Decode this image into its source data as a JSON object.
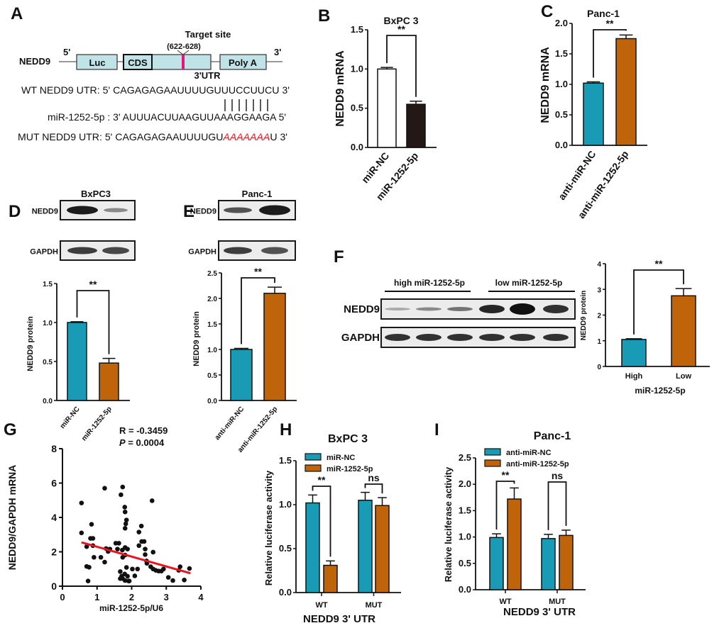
{
  "panel_letters": [
    "A",
    "B",
    "C",
    "D",
    "E",
    "F",
    "G",
    "H",
    "I"
  ],
  "panel_a": {
    "gene": "NEDD9",
    "five_prime": "5'",
    "three_prime": "3'",
    "boxes": {
      "luc": "Luc",
      "cds": "CDS",
      "poly_a": "Poly A"
    },
    "utr_label": "3'UTR",
    "target_site": "Target site",
    "target_range": "(622-628)",
    "wt_line": "WT NEDD9  UTR: 5' CAGAGAGAAUUUUGUUUCCUUCU 3'",
    "mir_line": "miR-1252-5p : 3' AUUUACUUAAGUUAAAGGAAGA 5'",
    "mut_prefix": "MUT NEDD9  UTR: 5' CAGAGAGAAUUUUGU",
    "mut_site": "AAAAAAA",
    "mut_suffix": "U 3'",
    "colors": {
      "box": "#bfe3e6",
      "target": "#e6157a",
      "mutation": "#e8141e"
    }
  },
  "blots": {
    "D": {
      "rows": [
        "NEDD9",
        "GAPDH"
      ]
    },
    "E": {
      "rows": [
        "NEDD9",
        "GAPDH"
      ]
    },
    "F": {
      "rows": [
        "NEDD9",
        "GAPDH"
      ],
      "groups": [
        "high miR-1252-5p",
        "low miR-1252-5p"
      ]
    }
  },
  "panel_g_stats": {
    "r": "R = -0.3459",
    "p_symbol": "P",
    "p_value": " = 0.0004"
  },
  "chart_data": [
    {
      "panel": "B",
      "type": "bar",
      "title": "BxPC 3",
      "ylabel": "NEDD9 mRNA",
      "xlabel": "",
      "categories": [
        "miR-NC",
        "miR-1252-5p"
      ],
      "values": [
        1.0,
        0.55
      ],
      "errors": [
        0.02,
        0.04
      ],
      "colors": [
        "#ffffff",
        "#231815"
      ],
      "ylim": [
        0,
        1.5
      ],
      "yticks": [
        "0.0",
        "0.5",
        "1.0",
        "1.5"
      ],
      "significance": [
        {
          "label": "**"
        }
      ]
    },
    {
      "panel": "C",
      "type": "bar",
      "title": "Panc-1",
      "ylabel": "NEDD9 mRNA",
      "xlabel": "",
      "categories": [
        "anti-miR-NC",
        "anti-miR-1252-5p"
      ],
      "values": [
        1.02,
        1.75
      ],
      "errors": [
        0.02,
        0.06
      ],
      "colors": [
        "#1a9bb5",
        "#c0640c"
      ],
      "ylim": [
        0,
        2.0
      ],
      "yticks": [
        "0.0",
        "0.5",
        "1.0",
        "1.5",
        "2.0"
      ],
      "significance": [
        {
          "label": "**"
        }
      ]
    },
    {
      "panel": "D",
      "type": "bar",
      "title": "BxPC3",
      "ylabel": "NEDD9 protein",
      "xlabel": "",
      "categories": [
        "miR-NC",
        "miR-1252-5p"
      ],
      "values": [
        1.0,
        0.48
      ],
      "errors": [
        0.01,
        0.06
      ],
      "colors": [
        "#1a9bb5",
        "#c0640c"
      ],
      "ylim": [
        0,
        1.5
      ],
      "yticks": [
        "0.0",
        "0.5",
        "1.0",
        "1.5"
      ],
      "significance": [
        {
          "label": "**"
        }
      ]
    },
    {
      "panel": "E",
      "type": "bar",
      "title": "Panc-1",
      "ylabel": "NEDD9 protein",
      "xlabel": "",
      "categories": [
        "anti-miR-NC",
        "anti-miR-1252-5p"
      ],
      "values": [
        1.0,
        2.1
      ],
      "errors": [
        0.02,
        0.12
      ],
      "colors": [
        "#1a9bb5",
        "#c0640c"
      ],
      "ylim": [
        0,
        2.5
      ],
      "yticks": [
        "0.0",
        "0.5",
        "1.0",
        "1.5",
        "2.0",
        "2.5"
      ],
      "significance": [
        {
          "label": "**"
        }
      ]
    },
    {
      "panel": "F",
      "type": "bar",
      "title": "",
      "ylabel": "NEDD9 protein",
      "xlabel": "miR-1252-5p",
      "categories": [
        "High",
        "Low"
      ],
      "values": [
        1.05,
        2.75
      ],
      "errors": [
        0.03,
        0.28
      ],
      "colors": [
        "#1a9bb5",
        "#c0640c"
      ],
      "ylim": [
        0,
        4
      ],
      "yticks": [
        "0",
        "1",
        "2",
        "3",
        "4"
      ],
      "significance": [
        {
          "label": "**"
        }
      ]
    },
    {
      "panel": "G",
      "type": "scatter",
      "title": "",
      "ylabel": "NEDD9/GAPDH mRNA",
      "xlabel": "miR-1252-5p/U6",
      "xlim": [
        0,
        4
      ],
      "ylim": [
        0,
        8
      ],
      "xticks": [
        "0",
        "1",
        "2",
        "3",
        "4"
      ],
      "yticks": [
        "0",
        "2",
        "4",
        "6",
        "8"
      ],
      "fit_line": {
        "x": [
          0.55,
          3.7
        ],
        "y": [
          2.55,
          0.75
        ],
        "color": "#e8141e"
      },
      "points": [
        [
          0.55,
          3.1
        ],
        [
          0.55,
          4.84
        ],
        [
          0.7,
          2.3
        ],
        [
          0.7,
          1.15
        ],
        [
          0.77,
          1.1
        ],
        [
          0.74,
          0.3
        ],
        [
          0.84,
          3.6
        ],
        [
          0.81,
          2.78
        ],
        [
          0.88,
          2.78
        ],
        [
          0.88,
          2.36
        ],
        [
          0.91,
          1.68
        ],
        [
          1.11,
          1.68
        ],
        [
          1.22,
          1.4
        ],
        [
          1.22,
          5.7
        ],
        [
          1.26,
          2.19
        ],
        [
          1.37,
          2.16
        ],
        [
          1.32,
          2.02
        ],
        [
          1.54,
          2.5
        ],
        [
          1.63,
          2.5
        ],
        [
          1.59,
          2.16
        ],
        [
          1.69,
          5.32
        ],
        [
          1.74,
          5.77
        ],
        [
          1.8,
          4.6
        ],
        [
          1.81,
          4.32
        ],
        [
          1.85,
          3.85
        ],
        [
          1.83,
          3.63
        ],
        [
          1.81,
          3.37
        ],
        [
          1.73,
          2.1
        ],
        [
          1.81,
          2.25
        ],
        [
          1.88,
          2.16
        ],
        [
          1.74,
          1.68
        ],
        [
          1.81,
          1.81
        ],
        [
          1.67,
          0.85
        ],
        [
          1.71,
          0.58
        ],
        [
          1.74,
          0.44
        ],
        [
          1.8,
          0.71
        ],
        [
          1.85,
          1.09
        ],
        [
          1.88,
          0.58
        ],
        [
          1.91,
          0.3
        ],
        [
          1.93,
          0.3
        ],
        [
          1.81,
          0.33
        ],
        [
          1.67,
          0.44
        ],
        [
          2.02,
          1.0
        ],
        [
          2.09,
          0.6
        ],
        [
          2.17,
          1.0
        ],
        [
          2.21,
          2.36
        ],
        [
          2.21,
          3.15
        ],
        [
          2.28,
          3.5
        ],
        [
          2.29,
          2.6
        ],
        [
          2.36,
          2.6
        ],
        [
          2.39,
          2.16
        ],
        [
          2.39,
          1.84
        ],
        [
          2.43,
          1.47
        ],
        [
          2.44,
          1.33
        ],
        [
          2.59,
          4.97
        ],
        [
          2.62,
          1.98
        ],
        [
          2.55,
          1.13
        ],
        [
          2.62,
          1.0
        ],
        [
          2.7,
          0.92
        ],
        [
          2.78,
          0.88
        ],
        [
          2.86,
          0.88
        ],
        [
          2.92,
          1.0
        ],
        [
          3.06,
          0.51
        ],
        [
          3.19,
          0.33
        ],
        [
          3.36,
          0.92
        ],
        [
          3.4,
          1.13
        ],
        [
          3.52,
          0.36
        ],
        [
          3.67,
          1.03
        ]
      ]
    },
    {
      "panel": "H",
      "type": "bar",
      "title": "BxPC 3",
      "ylabel": "Relative luciferase activity",
      "xlabel": "NEDD9 3' UTR",
      "categories": [
        "WT",
        "MUT"
      ],
      "ylim": [
        0,
        1.5
      ],
      "yticks": [
        "0.0",
        "0.5",
        "1.0",
        "1.5"
      ],
      "legend": "top-left",
      "series": [
        {
          "name": "miR-NC",
          "values": [
            1.02,
            1.05
          ],
          "errors": [
            0.09,
            0.09
          ],
          "color": "#1a9bb5"
        },
        {
          "name": "miR-1252-5p",
          "values": [
            0.31,
            0.99
          ],
          "errors": [
            0.05,
            0.09
          ],
          "color": "#c0640c"
        }
      ],
      "significance": [
        {
          "label": "**"
        },
        {
          "label": "ns"
        }
      ]
    },
    {
      "panel": "I",
      "type": "bar",
      "title": "Panc-1",
      "ylabel": "Relative luciferase activity",
      "xlabel": "NEDD9 3' UTR",
      "categories": [
        "WT",
        "MUT"
      ],
      "ylim": [
        0,
        2.5
      ],
      "yticks": [
        "0.0",
        "0.5",
        "1.0",
        "1.5",
        "2.0",
        "2.5"
      ],
      "legend": "top-left",
      "series": [
        {
          "name": "anti-miR-NC",
          "values": [
            0.99,
            0.97
          ],
          "errors": [
            0.07,
            0.08
          ],
          "color": "#1a9bb5"
        },
        {
          "name": "anti-miR-1252-5p",
          "values": [
            1.72,
            1.03
          ],
          "errors": [
            0.21,
            0.1
          ],
          "color": "#c0640c"
        }
      ],
      "significance": [
        {
          "label": "**"
        },
        {
          "label": "ns"
        }
      ]
    }
  ]
}
